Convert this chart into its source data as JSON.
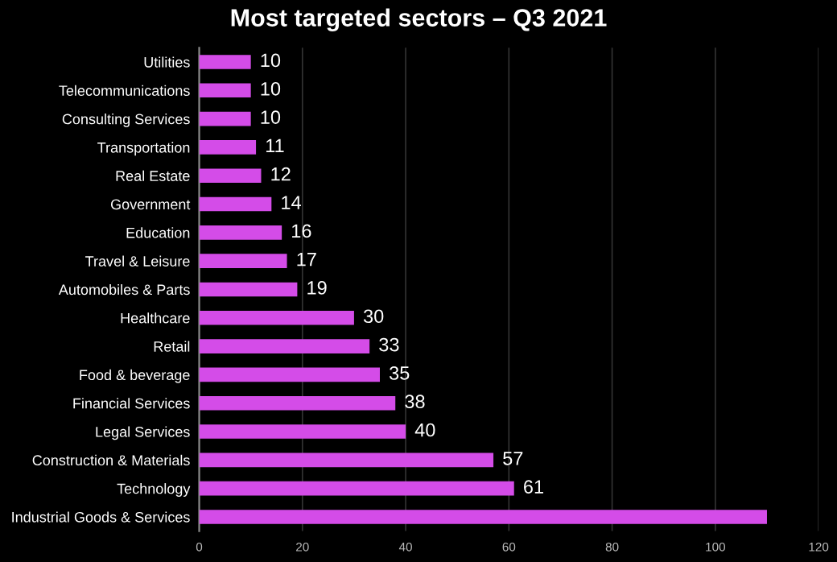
{
  "chart_data": {
    "type": "bar",
    "orientation": "horizontal",
    "title": "Most targeted sectors – Q3 2021",
    "categories": [
      "Utilities",
      "Telecommunications",
      "Consulting Services",
      "Transportation",
      "Real Estate",
      "Government",
      "Education",
      "Travel & Leisure",
      "Automobiles & Parts",
      "Healthcare",
      "Retail",
      "Food & beverage",
      "Financial Services",
      "Legal Services",
      "Construction & Materials",
      "Technology",
      "Industrial Goods & Services"
    ],
    "values": [
      10,
      10,
      10,
      11,
      12,
      14,
      16,
      17,
      19,
      30,
      33,
      35,
      38,
      40,
      57,
      61,
      110
    ],
    "value_labels": [
      "10",
      "10",
      "10",
      "11",
      "12",
      "14",
      "16",
      "17",
      "19",
      "30",
      "33",
      "35",
      "38",
      "40",
      "57",
      "61",
      null
    ],
    "color": "#d44ce8",
    "xlim": [
      0,
      120
    ],
    "xticks": [
      0,
      20,
      40,
      60,
      80,
      100,
      120
    ],
    "grid": "x"
  }
}
